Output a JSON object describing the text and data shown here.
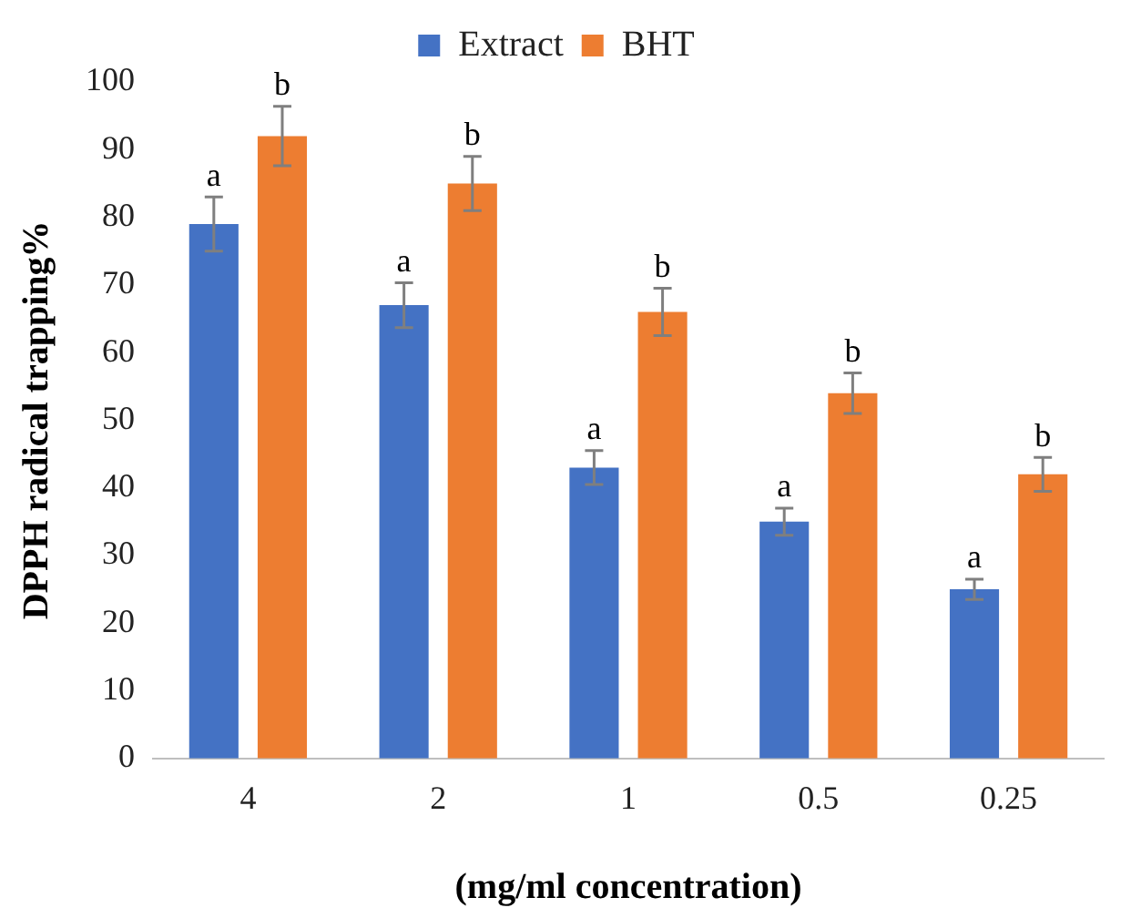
{
  "chart_data": {
    "type": "bar",
    "xlabel": "(mg/ml concentration)",
    "ylabel": "DPPH radical trapping%",
    "categories": [
      "4",
      "2",
      "1",
      "0.5",
      "0.25"
    ],
    "series": [
      {
        "name": "Extract",
        "color": "#4472c4",
        "values": [
          79,
          67,
          43,
          35,
          25
        ],
        "errors": [
          4,
          3.3,
          2.5,
          2,
          1.5
        ],
        "value_labels": [
          "a",
          "a",
          "a",
          "a",
          "a"
        ]
      },
      {
        "name": "BHT",
        "color": "#ed7d31",
        "values": [
          92,
          85,
          66,
          54,
          42
        ],
        "errors": [
          4.4,
          4,
          3.5,
          3,
          2.5
        ],
        "value_labels": [
          "b",
          "b",
          "b",
          "b",
          "b"
        ]
      }
    ],
    "ylim": [
      0,
      100
    ],
    "yticks": [
      0,
      10,
      20,
      30,
      40,
      50,
      60,
      70,
      80,
      90,
      100
    ],
    "grid": false,
    "legend": "top"
  }
}
